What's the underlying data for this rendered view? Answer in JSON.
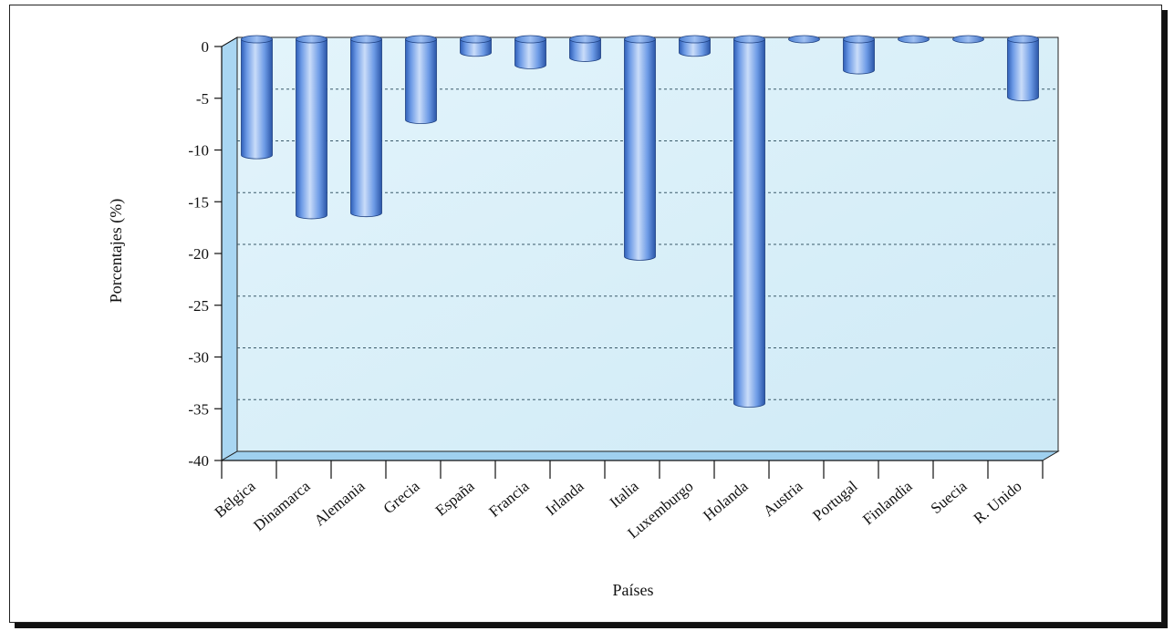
{
  "chart_data": {
    "type": "bar",
    "title": "",
    "xlabel": "Países",
    "ylabel": "Porcentajes (%)",
    "ylim": [
      -40,
      0
    ],
    "yticks": [
      0,
      -5,
      -10,
      -15,
      -20,
      -25,
      -30,
      -35,
      -40
    ],
    "grid": true,
    "categories": [
      "Bélgica",
      "Dinamarca",
      "Alemania",
      "Grecia",
      "España",
      "Francia",
      "Irlanda",
      "Italia",
      "Luxemburgo",
      "Holanda",
      "Austria",
      "Portugal",
      "Finlandia",
      "Suecia",
      "R. Unido"
    ],
    "values": [
      -11.2,
      -17.0,
      -16.8,
      -7.8,
      -1.3,
      -2.5,
      -1.8,
      -21.0,
      -1.3,
      -35.2,
      0.0,
      -3.0,
      0.0,
      0.0,
      -5.6
    ],
    "colors": {
      "bar": "#5b8fe0",
      "bar_light": "#bcd3f7",
      "bar_dark": "#2f5fb8",
      "wall": "#d8eef8",
      "floor": "#a9d6f2",
      "grid": "#3a5a6a"
    }
  }
}
